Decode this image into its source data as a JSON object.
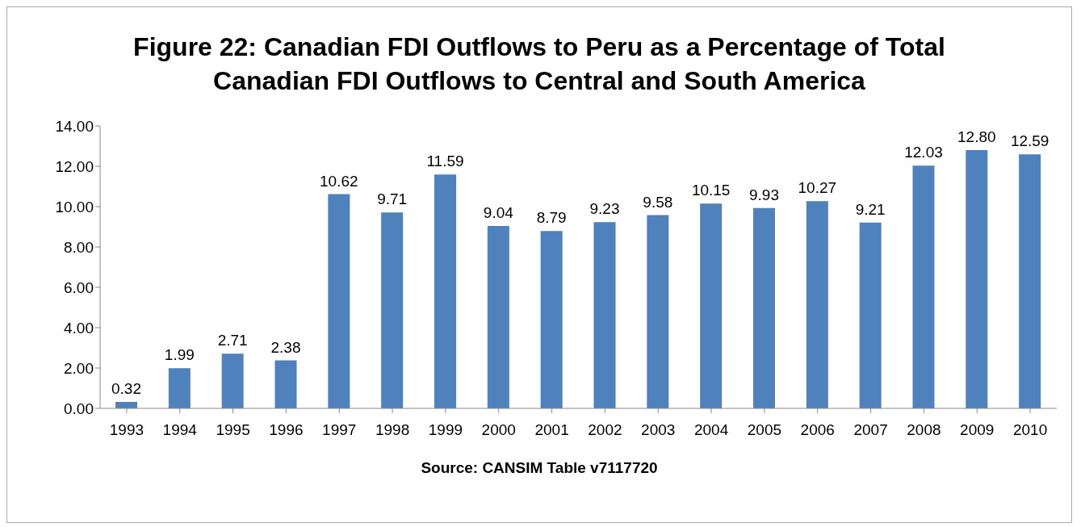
{
  "chart_data": {
    "type": "bar",
    "title": "Figure 22: Canadian FDI Outflows to Peru as a Percentage of Total Canadian FDI Outflows to Central and South America",
    "categories": [
      "1993",
      "1994",
      "1995",
      "1996",
      "1997",
      "1998",
      "1999",
      "2000",
      "2001",
      "2002",
      "2003",
      "2004",
      "2005",
      "2006",
      "2007",
      "2008",
      "2009",
      "2010"
    ],
    "values": [
      0.32,
      1.99,
      2.71,
      2.38,
      10.62,
      9.71,
      11.59,
      9.04,
      8.79,
      9.23,
      9.58,
      10.15,
      9.93,
      10.27,
      9.21,
      12.03,
      12.8,
      12.59
    ],
    "value_labels": [
      "0.32",
      "1.99",
      "2.71",
      "2.38",
      "10.62",
      "9.71",
      "11.59",
      "9.04",
      "8.79",
      "9.23",
      "9.58",
      "10.15",
      "9.93",
      "10.27",
      "9.21",
      "12.03",
      "12.80",
      "12.59"
    ],
    "color": "#4f81bd",
    "ylim": [
      0,
      14
    ],
    "yticks": [
      {
        "value": 0,
        "label": "0.00"
      },
      {
        "value": 2,
        "label": "2.00"
      },
      {
        "value": 4,
        "label": "4.00"
      },
      {
        "value": 6,
        "label": "6.00"
      },
      {
        "value": 8,
        "label": "8.00"
      },
      {
        "value": 10,
        "label": "10.00"
      },
      {
        "value": 12,
        "label": "12.00"
      },
      {
        "value": 14,
        "label": "14.00"
      }
    ],
    "annotations": [
      "Source: CANSIM Table v7117720"
    ]
  }
}
